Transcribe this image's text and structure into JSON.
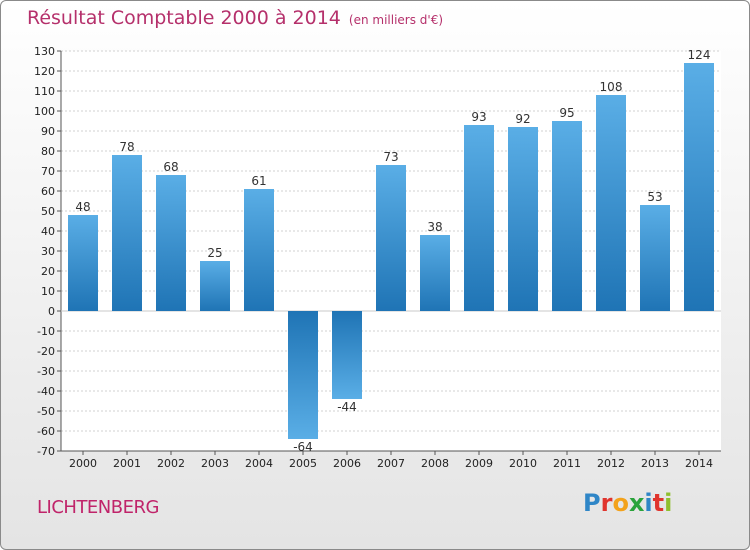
{
  "header": {
    "title": "Résultat Comptable 2000 à 2014",
    "subtitle": "(en milliers d'€)"
  },
  "footer": {
    "commune": "LICHTENBERG",
    "logo_letters": [
      "P",
      "r",
      "o",
      "x",
      "i",
      "t",
      "i"
    ]
  },
  "colors": {
    "title": "#b5306b",
    "bar_light": "#5aaee6",
    "bar_dark": "#1f74b5"
  },
  "chart_data": {
    "type": "bar",
    "title": "Résultat Comptable 2000 à 2014",
    "subtitle": "(en milliers d'€)",
    "xlabel": "",
    "ylabel": "",
    "categories": [
      "2000",
      "2001",
      "2002",
      "2003",
      "2004",
      "2005",
      "2006",
      "2007",
      "2008",
      "2009",
      "2010",
      "2011",
      "2012",
      "2013",
      "2014"
    ],
    "values": [
      48,
      78,
      68,
      25,
      61,
      -64,
      -44,
      73,
      38,
      93,
      92,
      95,
      108,
      53,
      124
    ],
    "ylim": [
      -70,
      130
    ],
    "ytick_step": 10,
    "grid": true
  }
}
